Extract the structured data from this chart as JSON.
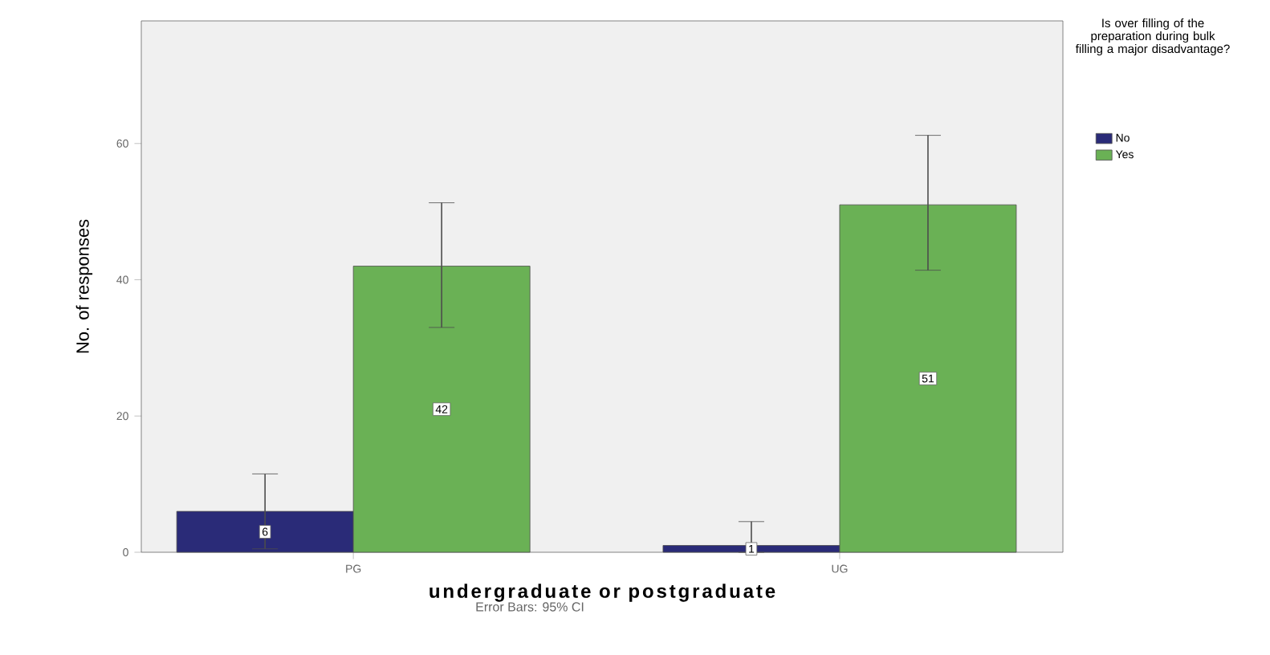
{
  "chart_data": {
    "type": "bar",
    "categories": [
      "PG",
      "UG"
    ],
    "xlabel": "undergraduate or postgraduate",
    "ylabel": "No. of responses",
    "legend_title": "Is over filling of the preparation during bulk filling a major disadvantage?",
    "series": [
      {
        "name": "No",
        "color": "#2a2b78",
        "values": [
          6,
          1
        ],
        "errors": [
          [
            0.5,
            11.5
          ],
          [
            0,
            4.5
          ]
        ]
      },
      {
        "name": "Yes",
        "color": "#6ab155",
        "values": [
          42,
          51
        ],
        "errors": [
          [
            33,
            51.3
          ],
          [
            41.4,
            61.2
          ]
        ]
      }
    ],
    "ylim": [
      0,
      78
    ],
    "yticks": [
      0,
      20,
      40,
      60
    ],
    "grid": false,
    "legend": "top right",
    "data_labels": true,
    "annotations": [
      "Error Bars: 95% CI"
    ]
  }
}
